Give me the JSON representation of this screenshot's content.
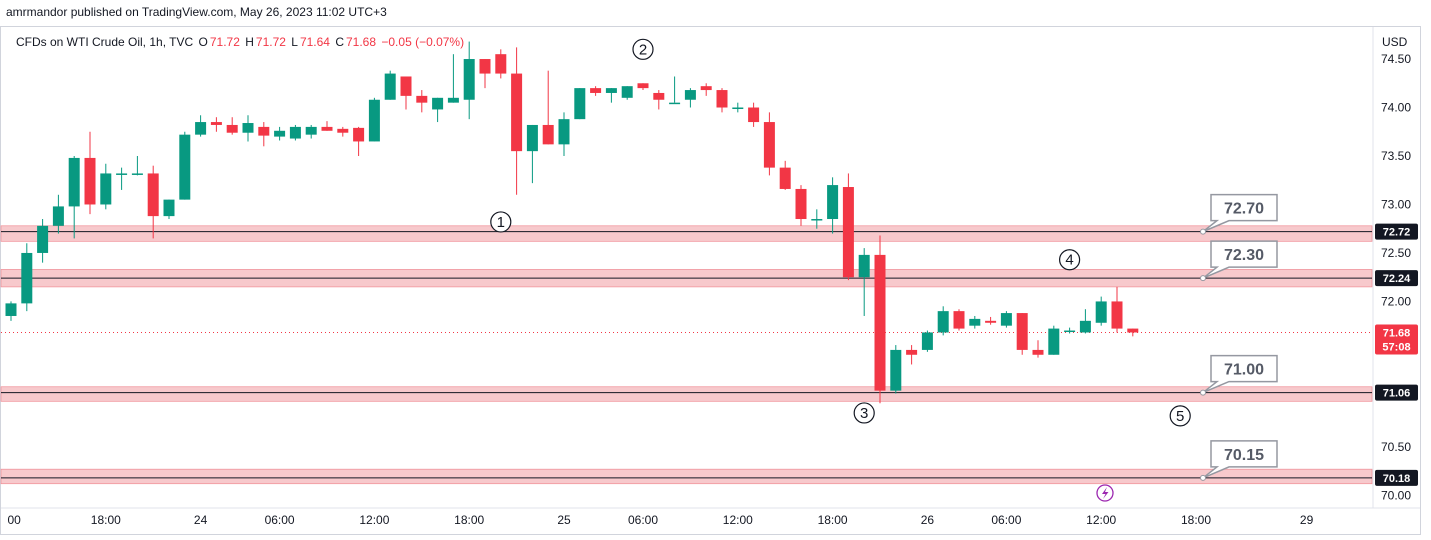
{
  "publisher_line": "amrmandor published on TradingView.com, May 26, 2023 11:02 UTC+3",
  "legend": {
    "symbol": "CFDs on WTI Crude Oil, 1h, TVC",
    "o_label": "O",
    "o_value": "71.72",
    "h_label": "H",
    "h_value": "71.72",
    "l_label": "L",
    "l_value": "71.64",
    "c_label": "C",
    "c_value": "71.68",
    "change": "−0.05 (−0.07%)"
  },
  "colors": {
    "up": "#089981",
    "down": "#f23645",
    "zone": "#f7c9cc",
    "badge": "#131722"
  },
  "icons": [
    "lightning-icon"
  ],
  "chart_data": {
    "type": "candlestick",
    "currency_label": "USD",
    "ylim": [
      69.88,
      74.82
    ],
    "yticks": [
      {
        "v": 74.5,
        "label": "74.50"
      },
      {
        "v": 74.0,
        "label": "74.00"
      },
      {
        "v": 73.5,
        "label": "73.50"
      },
      {
        "v": 73.0,
        "label": "73.00"
      },
      {
        "v": 72.5,
        "label": "72.50"
      },
      {
        "v": 72.0,
        "label": "72.00"
      },
      {
        "v": 70.5,
        "label": "70.50"
      },
      {
        "v": 70.0,
        "label": "70.00"
      }
    ],
    "xticks": [
      {
        "i": 0.2,
        "label": "00"
      },
      {
        "i": 6,
        "label": "18:00"
      },
      {
        "i": 12,
        "label": "24"
      },
      {
        "i": 17,
        "label": "06:00"
      },
      {
        "i": 23,
        "label": "12:00"
      },
      {
        "i": 29,
        "label": "18:00"
      },
      {
        "i": 35,
        "label": "25"
      },
      {
        "i": 40,
        "label": "06:00"
      },
      {
        "i": 46,
        "label": "12:00"
      },
      {
        "i": 52,
        "label": "18:00"
      },
      {
        "i": 58,
        "label": "26"
      },
      {
        "i": 63,
        "label": "06:00"
      },
      {
        "i": 69,
        "label": "12:00"
      },
      {
        "i": 75,
        "label": "18:00"
      },
      {
        "i": 82,
        "label": "29"
      }
    ],
    "candles": [
      {
        "o": 71.85,
        "h": 72.0,
        "l": 71.8,
        "c": 71.98
      },
      {
        "o": 71.98,
        "h": 72.6,
        "l": 71.9,
        "c": 72.5
      },
      {
        "o": 72.5,
        "h": 72.85,
        "l": 72.4,
        "c": 72.78
      },
      {
        "o": 72.78,
        "h": 73.1,
        "l": 72.7,
        "c": 72.98
      },
      {
        "o": 72.98,
        "h": 73.5,
        "l": 72.65,
        "c": 73.48
      },
      {
        "o": 73.48,
        "h": 73.75,
        "l": 72.9,
        "c": 73.0
      },
      {
        "o": 73.0,
        "h": 73.42,
        "l": 72.95,
        "c": 73.32
      },
      {
        "o": 73.32,
        "h": 73.38,
        "l": 73.15,
        "c": 73.32
      },
      {
        "o": 73.32,
        "h": 73.5,
        "l": 73.3,
        "c": 73.32
      },
      {
        "o": 73.32,
        "h": 73.4,
        "l": 72.65,
        "c": 72.88
      },
      {
        "o": 72.88,
        "h": 73.05,
        "l": 72.85,
        "c": 73.05
      },
      {
        "o": 73.05,
        "h": 73.75,
        "l": 73.05,
        "c": 73.72
      },
      {
        "o": 73.72,
        "h": 73.92,
        "l": 73.7,
        "c": 73.85
      },
      {
        "o": 73.85,
        "h": 73.9,
        "l": 73.75,
        "c": 73.82
      },
      {
        "o": 73.82,
        "h": 73.9,
        "l": 73.72,
        "c": 73.74
      },
      {
        "o": 73.74,
        "h": 73.92,
        "l": 73.65,
        "c": 73.84
      },
      {
        "o": 73.8,
        "h": 73.85,
        "l": 73.6,
        "c": 73.71
      },
      {
        "o": 73.7,
        "h": 73.8,
        "l": 73.66,
        "c": 73.76
      },
      {
        "o": 73.68,
        "h": 73.82,
        "l": 73.66,
        "c": 73.8
      },
      {
        "o": 73.72,
        "h": 73.82,
        "l": 73.68,
        "c": 73.8
      },
      {
        "o": 73.8,
        "h": 73.86,
        "l": 73.76,
        "c": 73.76
      },
      {
        "o": 73.78,
        "h": 73.8,
        "l": 73.7,
        "c": 73.74
      },
      {
        "o": 73.79,
        "h": 73.8,
        "l": 73.5,
        "c": 73.65
      },
      {
        "o": 73.65,
        "h": 74.1,
        "l": 73.65,
        "c": 74.08
      },
      {
        "o": 74.08,
        "h": 74.38,
        "l": 74.08,
        "c": 74.35
      },
      {
        "o": 74.32,
        "h": 74.32,
        "l": 73.98,
        "c": 74.12
      },
      {
        "o": 74.12,
        "h": 74.18,
        "l": 73.95,
        "c": 74.05
      },
      {
        "o": 73.98,
        "h": 74.1,
        "l": 73.85,
        "c": 74.1
      },
      {
        "o": 74.05,
        "h": 74.55,
        "l": 74.05,
        "c": 74.1
      },
      {
        "o": 74.08,
        "h": 74.68,
        "l": 73.88,
        "c": 74.5
      },
      {
        "o": 74.5,
        "h": 74.5,
        "l": 74.2,
        "c": 74.35
      },
      {
        "o": 74.55,
        "h": 74.6,
        "l": 74.3,
        "c": 74.35
      },
      {
        "o": 74.35,
        "h": 74.62,
        "l": 73.1,
        "c": 73.55
      },
      {
        "o": 73.55,
        "h": 73.82,
        "l": 73.22,
        "c": 73.82
      },
      {
        "o": 73.82,
        "h": 74.38,
        "l": 73.62,
        "c": 73.62
      },
      {
        "o": 73.62,
        "h": 73.95,
        "l": 73.5,
        "c": 73.88
      },
      {
        "o": 73.88,
        "h": 74.2,
        "l": 73.88,
        "c": 74.2
      },
      {
        "o": 74.2,
        "h": 74.22,
        "l": 74.12,
        "c": 74.15
      },
      {
        "o": 74.15,
        "h": 74.2,
        "l": 74.05,
        "c": 74.2
      },
      {
        "o": 74.1,
        "h": 74.22,
        "l": 74.08,
        "c": 74.22
      },
      {
        "o": 74.25,
        "h": 74.25,
        "l": 74.18,
        "c": 74.2
      },
      {
        "o": 74.15,
        "h": 74.18,
        "l": 73.98,
        "c": 74.08
      },
      {
        "o": 74.05,
        "h": 74.32,
        "l": 74.05,
        "c": 74.05
      },
      {
        "o": 74.08,
        "h": 74.2,
        "l": 74.0,
        "c": 74.18
      },
      {
        "o": 74.22,
        "h": 74.25,
        "l": 74.12,
        "c": 74.18
      },
      {
        "o": 74.18,
        "h": 74.2,
        "l": 73.95,
        "c": 74.0
      },
      {
        "o": 74.0,
        "h": 74.05,
        "l": 73.95,
        "c": 74.0
      },
      {
        "o": 74.0,
        "h": 74.05,
        "l": 73.8,
        "c": 73.85
      },
      {
        "o": 73.85,
        "h": 73.95,
        "l": 73.3,
        "c": 73.38
      },
      {
        "o": 73.38,
        "h": 73.45,
        "l": 73.15,
        "c": 73.16
      },
      {
        "o": 73.16,
        "h": 73.2,
        "l": 72.78,
        "c": 72.85
      },
      {
        "o": 72.85,
        "h": 72.95,
        "l": 72.75,
        "c": 72.85
      },
      {
        "o": 72.85,
        "h": 73.28,
        "l": 72.7,
        "c": 73.2
      },
      {
        "o": 73.18,
        "h": 73.32,
        "l": 72.22,
        "c": 72.25
      },
      {
        "o": 72.25,
        "h": 72.55,
        "l": 71.85,
        "c": 72.48
      },
      {
        "o": 72.48,
        "h": 72.68,
        "l": 70.95,
        "c": 71.08
      },
      {
        "o": 71.08,
        "h": 71.55,
        "l": 71.05,
        "c": 71.5
      },
      {
        "o": 71.5,
        "h": 71.55,
        "l": 71.35,
        "c": 71.45
      },
      {
        "o": 71.5,
        "h": 71.7,
        "l": 71.48,
        "c": 71.68
      },
      {
        "o": 71.68,
        "h": 71.95,
        "l": 71.65,
        "c": 71.9
      },
      {
        "o": 71.9,
        "h": 71.92,
        "l": 71.7,
        "c": 71.72
      },
      {
        "o": 71.75,
        "h": 71.85,
        "l": 71.72,
        "c": 71.82
      },
      {
        "o": 71.8,
        "h": 71.84,
        "l": 71.76,
        "c": 71.78
      },
      {
        "o": 71.75,
        "h": 71.9,
        "l": 71.73,
        "c": 71.88
      },
      {
        "o": 71.88,
        "h": 71.88,
        "l": 71.45,
        "c": 71.5
      },
      {
        "o": 71.5,
        "h": 71.6,
        "l": 71.42,
        "c": 71.45
      },
      {
        "o": 71.45,
        "h": 71.75,
        "l": 71.45,
        "c": 71.72
      },
      {
        "o": 71.7,
        "h": 71.73,
        "l": 71.67,
        "c": 71.7
      },
      {
        "o": 71.68,
        "h": 71.92,
        "l": 71.67,
        "c": 71.8
      },
      {
        "o": 71.78,
        "h": 72.05,
        "l": 71.75,
        "c": 72.0
      },
      {
        "o": 72.0,
        "h": 72.15,
        "l": 71.68,
        "c": 71.72
      },
      {
        "o": 71.72,
        "h": 71.72,
        "l": 71.64,
        "c": 71.68
      }
    ],
    "zones": [
      {
        "lo": 72.62,
        "hi": 72.78,
        "line": 72.72,
        "label": "72.72"
      },
      {
        "lo": 72.15,
        "hi": 72.33,
        "line": 72.24,
        "label": "72.24"
      },
      {
        "lo": 70.97,
        "hi": 71.12,
        "line": 71.06,
        "label": "71.06"
      },
      {
        "lo": 70.12,
        "hi": 70.27,
        "line": 70.18,
        "label": "70.18"
      }
    ],
    "callouts": [
      {
        "label": "72.70",
        "anchor": 72.72
      },
      {
        "label": "72.30",
        "anchor": 72.24
      },
      {
        "label": "71.00",
        "anchor": 71.06
      },
      {
        "label": "70.15",
        "anchor": 70.18
      }
    ],
    "markers": [
      {
        "label": "1",
        "i": 31.0,
        "y": 72.82
      },
      {
        "label": "2",
        "i": 40.0,
        "y": 74.6
      },
      {
        "label": "3",
        "i": 54.0,
        "y": 70.85
      },
      {
        "label": "4",
        "i": 67.0,
        "y": 72.43
      },
      {
        "label": "5",
        "i": 74.0,
        "y": 70.82
      }
    ],
    "last_price": {
      "v": 71.68,
      "price_label": "71.68",
      "countdown": "57:08"
    }
  }
}
